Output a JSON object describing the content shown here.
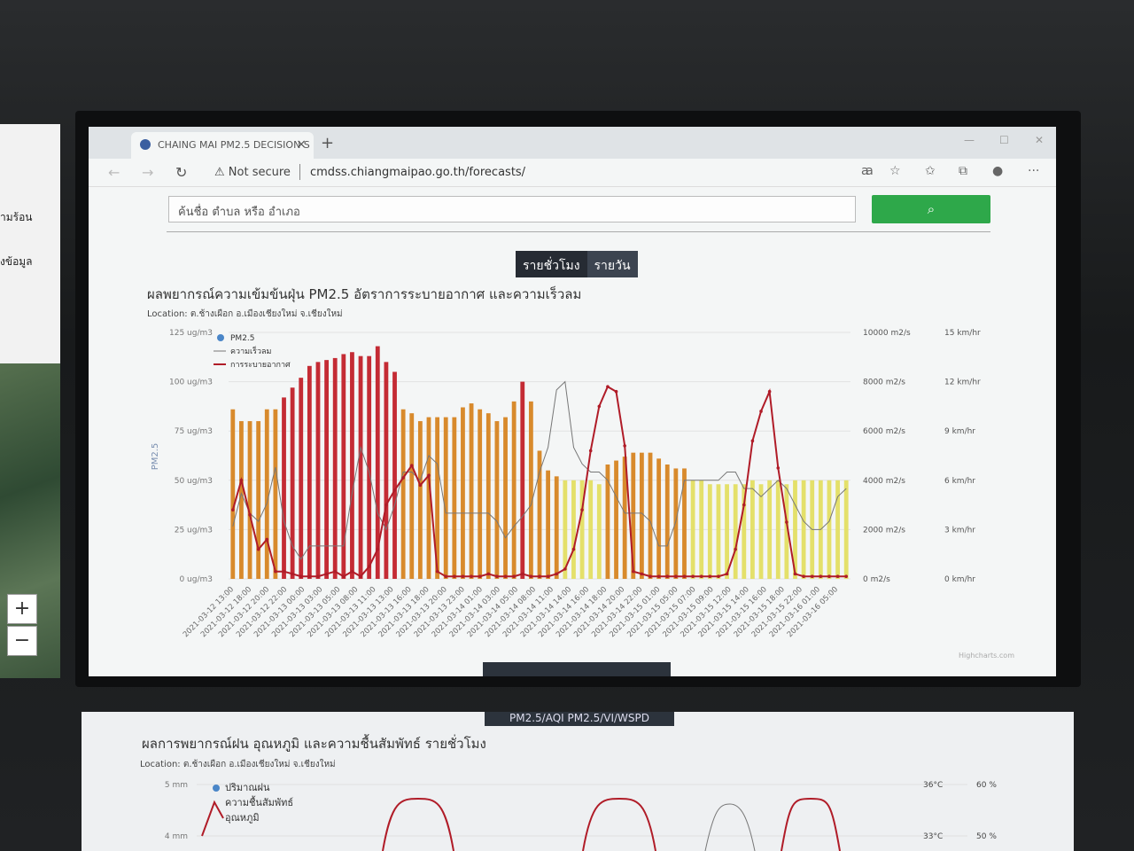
{
  "browser": {
    "tab_title": "CHAING MAI PM2.5 DECISION S",
    "security": "Not secure",
    "url": "cmdss.chiangmaipao.go.th/forecasts/"
  },
  "search": {
    "placeholder": "ค้นชื่อ ตำบล หรือ อำเภอ"
  },
  "toggle": {
    "hourly": "รายชั่วโมง",
    "daily": "รายวัน"
  },
  "chart1": {
    "title": "ผลพยากรณ์ความเข้มข้นฝุ่น PM2.5 อัตราการระบายอากาศ และความเร็วลม",
    "location": "Location: ต.ช้างเผือก อ.เมืองเชียงใหม่ จ.เชียงใหม่",
    "credit": "Highcharts.com"
  },
  "left_panel": {
    "text1": "ามร้อน",
    "text2": "งข้อมูล"
  },
  "bottom_tabs": {
    "a": "PM2.5/AQI",
    "b": "PM2.5/VI/WSPD"
  },
  "chart2": {
    "title": "ผลการพยากรณ์ฝน อุณหภูมิ และความชื้นสัมพัทธ์ รายชั่วโมง",
    "location": "Location: ต.ช้างเผือก อ.เมืองเชียงใหม่ จ.เชียงใหม่",
    "legend": [
      "ปริมาณฝน",
      "ความชื้นสัมพัทธ์",
      "อุณหภูมิ"
    ],
    "y_left": [
      "5 mm",
      "4 mm"
    ],
    "y_temp": [
      "36°C",
      "33°C"
    ],
    "y_rh": [
      "60 %",
      "50 %"
    ]
  },
  "chart_data": {
    "type": "bar",
    "y_axis_left": {
      "label": "PM2.5",
      "ticks": [
        "0 ug/m3",
        "25 ug/m3",
        "50 ug/m3",
        "75 ug/m3",
        "100 ug/m3",
        "125 ug/m3"
      ],
      "ylim": [
        0,
        125
      ]
    },
    "y_axis_vi": {
      "ticks": [
        "0 m2/s",
        "2000 m2/s",
        "4000 m2/s",
        "6000 m2/s",
        "8000 m2/s",
        "10000 m2/s"
      ],
      "ylim": [
        0,
        10000
      ]
    },
    "y_axis_ws": {
      "ticks": [
        "0 km/hr",
        "3 km/hr",
        "6 km/hr",
        "9 km/hr",
        "12 km/hr",
        "15 km/hr"
      ],
      "ylim": [
        0,
        15
      ]
    },
    "legend": [
      "PM2.5",
      "ความเร็วลม",
      "การระบายอากาศ"
    ],
    "x_tick_labels": [
      "2021-03-12 13:00",
      "2021-03-12 18:00",
      "2021-03-12 20:00",
      "2021-03-12 22:00",
      "2021-03-13 00:00",
      "2021-03-13 03:00",
      "2021-03-13 05:00",
      "2021-03-13 08:00",
      "2021-03-13 11:00",
      "2021-03-13 13:00",
      "2021-03-13 16:00",
      "2021-03-13 18:00",
      "2021-03-13 20:00",
      "2021-03-13 23:00",
      "2021-03-14 01:00",
      "2021-03-14 03:00",
      "2021-03-14 05:00",
      "2021-03-14 08:00",
      "2021-03-14 11:00",
      "2021-03-14 14:00",
      "2021-03-14 16:00",
      "2021-03-14 18:00",
      "2021-03-14 20:00",
      "2021-03-14 22:00",
      "2021-03-15 01:00",
      "2021-03-15 05:00",
      "2021-03-15 07:00",
      "2021-03-15 09:00",
      "2021-03-15 12:00",
      "2021-03-15 14:00",
      "2021-03-15 16:00",
      "2021-03-15 18:00",
      "2021-03-15 22:00",
      "2021-03-16 01:00",
      "2021-03-16 05:00"
    ],
    "pm25": [
      86,
      80,
      80,
      80,
      86,
      86,
      92,
      97,
      102,
      108,
      110,
      111,
      112,
      114,
      115,
      113,
      113,
      118,
      110,
      105,
      86,
      84,
      80,
      82,
      82,
      82,
      82,
      87,
      89,
      86,
      84,
      80,
      82,
      90,
      100,
      90,
      65,
      55,
      52,
      50,
      50,
      50,
      50,
      48,
      58,
      60,
      62,
      64,
      64,
      64,
      61,
      58,
      56,
      56,
      50,
      50,
      48,
      48,
      48,
      48,
      48,
      50,
      48,
      50,
      50,
      48,
      50,
      50,
      50,
      50,
      50,
      50,
      50
    ],
    "ventilation": [
      2800,
      4000,
      2600,
      1200,
      1600,
      300,
      300,
      200,
      100,
      100,
      100,
      200,
      300,
      100,
      300,
      100,
      500,
      1200,
      3000,
      3600,
      4100,
      4600,
      3800,
      4200,
      300,
      100,
      100,
      100,
      100,
      100,
      200,
      100,
      100,
      100,
      200,
      100,
      100,
      100,
      200,
      400,
      1200,
      2800,
      5200,
      7000,
      7800,
      7600,
      5400,
      300,
      200,
      100,
      100,
      100,
      100,
      100,
      100,
      100,
      100,
      100,
      200,
      1200,
      3000,
      5600,
      6800,
      7600,
      4500,
      2300,
      200,
      100,
      100,
      100,
      100,
      100,
      100
    ],
    "wind_speed": [
      3.2,
      5.2,
      4,
      3.5,
      4.6,
      6.8,
      3.5,
      2,
      1.2,
      2,
      2,
      2,
      2,
      2,
      5.2,
      8,
      6.5,
      4,
      3,
      4.5,
      6.5,
      6.5,
      6,
      7.5,
      7,
      4,
      4,
      4,
      4,
      4,
      4,
      3.5,
      2.5,
      3.2,
      3.8,
      4.5,
      6.5,
      8,
      11.5,
      12,
      8,
      7,
      6.5,
      6.5,
      6,
      5,
      4,
      4,
      4,
      3.5,
      2,
      2,
      3.5,
      6,
      6,
      6,
      6,
      6,
      6.5,
      6.5,
      5.5,
      5.5,
      5,
      5.5,
      6,
      5.5,
      4.5,
      3.5,
      3,
      3,
      3.5,
      5,
      5.5
    ]
  }
}
